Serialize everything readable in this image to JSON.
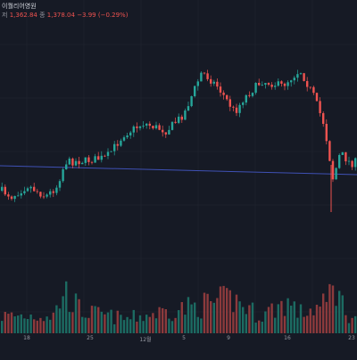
{
  "legend": {
    "symbol_text": "이퀄리어영원",
    "close_prefix": "저",
    "low_value": "1,362.84",
    "close_label": "종",
    "close_value": "1,378.04",
    "change_value": "−3.99 (−0.29%)"
  },
  "colors": {
    "background": "#161a25",
    "grid": "#222632",
    "up": "#26a69a",
    "down": "#ef5350",
    "vol_up": "#1c6b62",
    "vol_down": "#8c3a3c",
    "hline": "#3f51b5"
  },
  "x_axis": {
    "ticks": [
      {
        "label": "18",
        "pos": 30
      },
      {
        "label": "25",
        "pos": 101
      },
      {
        "label": "12월",
        "pos": 163
      },
      {
        "label": "5",
        "pos": 206
      },
      {
        "label": "9",
        "pos": 256
      },
      {
        "label": "16",
        "pos": 322
      },
      {
        "label": "23",
        "pos": 394
      }
    ]
  },
  "chart_data": {
    "type": "candlestick",
    "price_trend": [
      [
        0,
        0.82
      ],
      [
        12,
        0.86
      ],
      [
        30,
        0.79
      ],
      [
        50,
        0.86
      ],
      [
        62,
        0.8
      ],
      [
        72,
        0.64
      ],
      [
        95,
        0.63
      ],
      [
        118,
        0.61
      ],
      [
        138,
        0.46
      ],
      [
        160,
        0.39
      ],
      [
        185,
        0.44
      ],
      [
        205,
        0.33
      ],
      [
        225,
        0.06
      ],
      [
        242,
        0.15
      ],
      [
        262,
        0.32
      ],
      [
        272,
        0.23
      ],
      [
        292,
        0.12
      ],
      [
        315,
        0.15
      ],
      [
        335,
        0.05
      ],
      [
        350,
        0.21
      ],
      [
        362,
        0.4
      ],
      [
        372,
        0.75
      ],
      [
        380,
        0.58
      ],
      [
        392,
        0.65
      ],
      [
        400,
        0.63
      ]
    ],
    "volume_profile": [
      [
        0,
        0.3
      ],
      [
        60,
        0.32
      ],
      [
        70,
        0.75
      ],
      [
        90,
        0.38
      ],
      [
        140,
        0.25
      ],
      [
        190,
        0.4
      ],
      [
        210,
        0.45
      ],
      [
        260,
        0.6
      ],
      [
        290,
        0.3
      ],
      [
        320,
        0.55
      ],
      [
        335,
        0.35
      ],
      [
        365,
        0.5
      ],
      [
        372,
        0.95
      ],
      [
        385,
        0.4
      ],
      [
        400,
        0.2
      ]
    ]
  }
}
